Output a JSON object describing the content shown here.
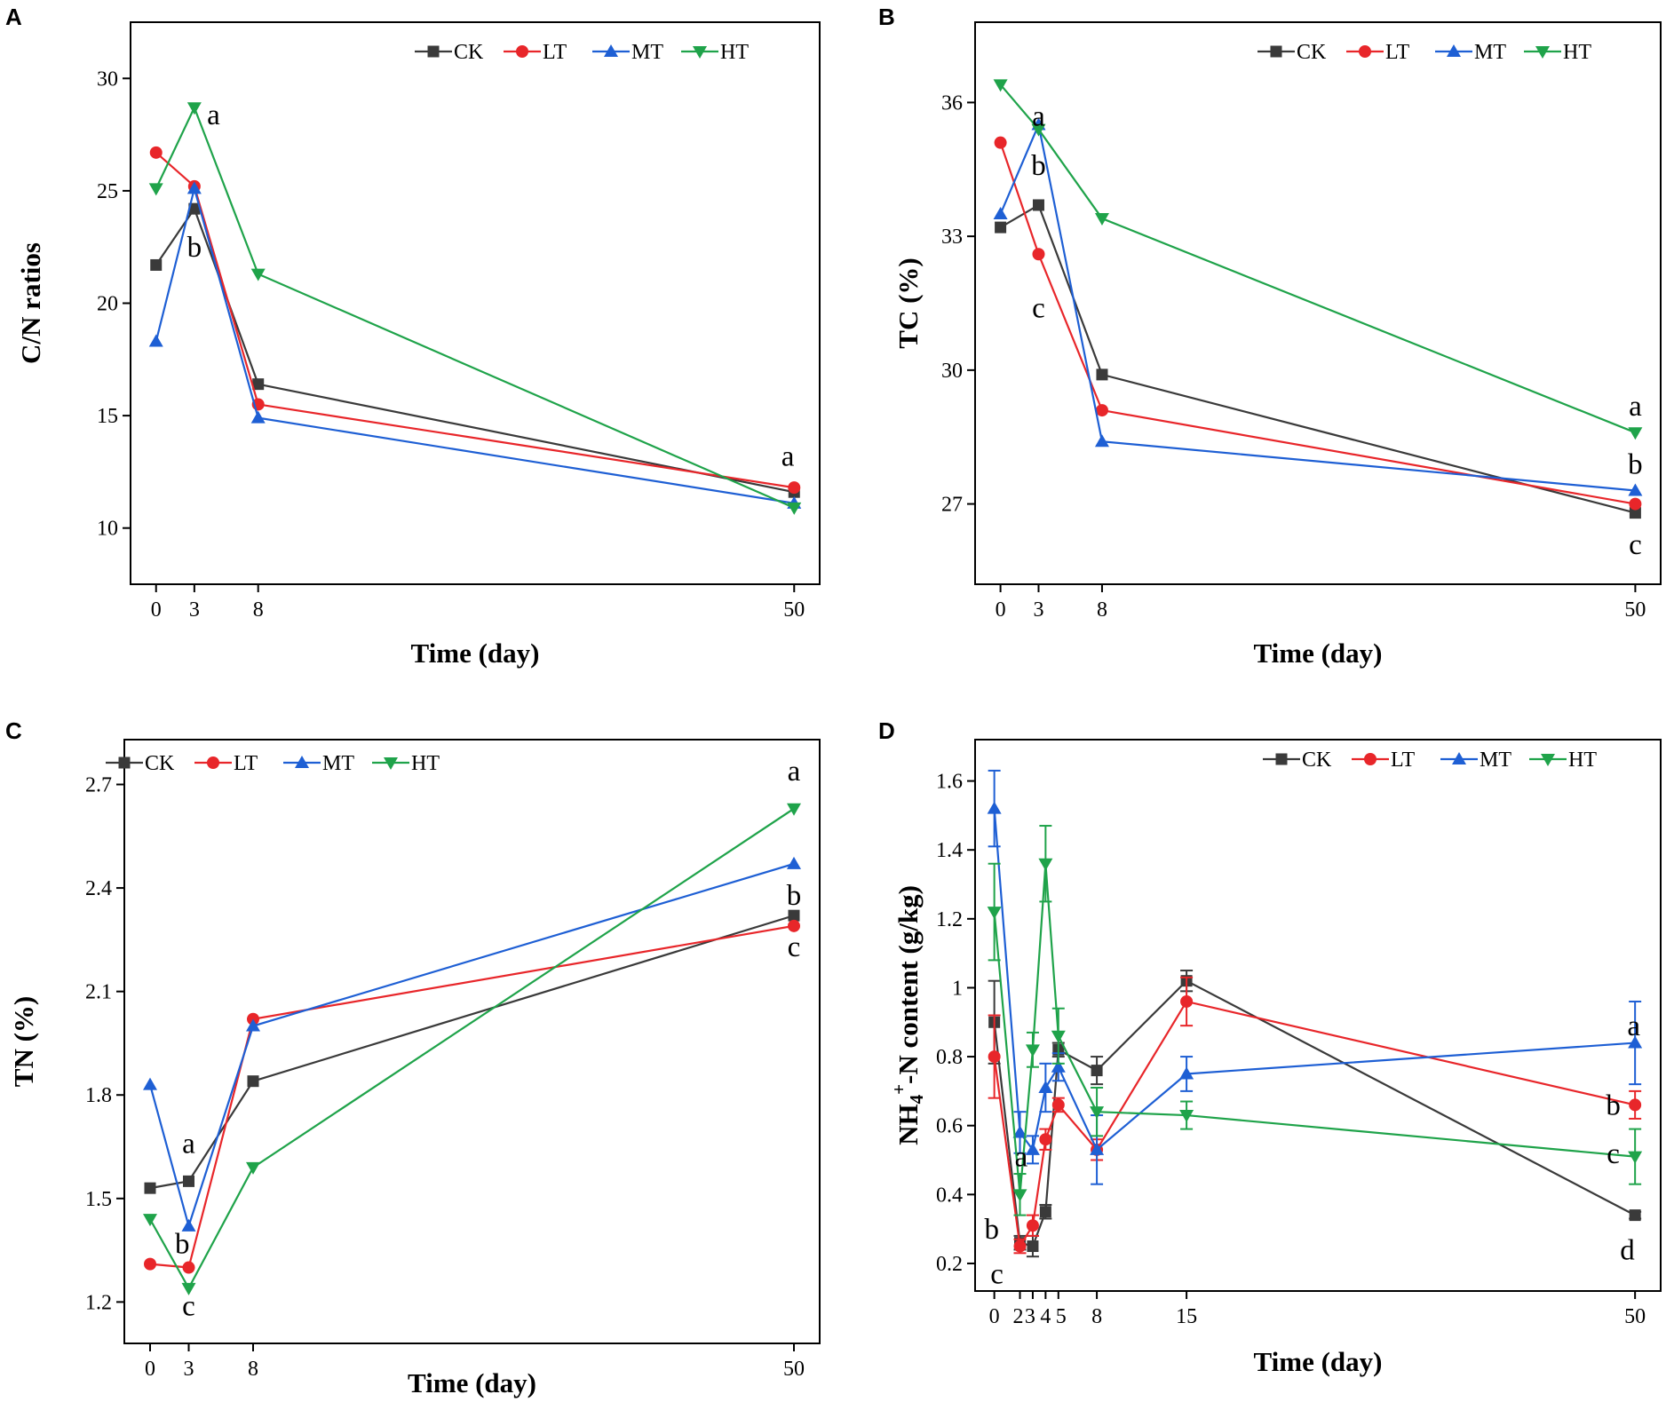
{
  "figure": {
    "colors": {
      "CK": "#3a3a3a",
      "LT": "#e8262a",
      "MT": "#1e5fd4",
      "HT": "#1fa34a"
    }
  },
  "chart_data": [
    {
      "panel": "A",
      "type": "line",
      "xlabel": "Time (day)",
      "ylabel": "C/N ratios",
      "x": [
        0,
        3,
        8,
        50
      ],
      "xticks": [
        0,
        3,
        8,
        50
      ],
      "xlim": [
        -2,
        52
      ],
      "yticks": [
        10,
        15,
        20,
        25,
        30
      ],
      "ylim": [
        7.5,
        32.5
      ],
      "legend": [
        "CK",
        "LT",
        "MT",
        "HT"
      ],
      "legend_position": "top-right",
      "series": [
        {
          "name": "CK",
          "marker": "square",
          "values": [
            21.7,
            24.2,
            16.4,
            11.6
          ]
        },
        {
          "name": "LT",
          "marker": "circle",
          "values": [
            26.7,
            25.2,
            15.5,
            11.8
          ]
        },
        {
          "name": "MT",
          "marker": "triangle-up",
          "values": [
            18.3,
            25.1,
            14.9,
            11.1
          ]
        },
        {
          "name": "HT",
          "marker": "triangle-down",
          "values": [
            25.1,
            28.7,
            21.3,
            10.9
          ]
        }
      ],
      "annotations": [
        {
          "text": "a",
          "x": 4.5,
          "y": 28.4
        },
        {
          "text": "b",
          "x": 3.0,
          "y": 22.5
        },
        {
          "text": "a",
          "x": 49.5,
          "y": 13.2
        }
      ]
    },
    {
      "panel": "B",
      "type": "line",
      "xlabel": "Time (day)",
      "ylabel": "TC (%)",
      "x": [
        0,
        3,
        8,
        50
      ],
      "xticks": [
        0,
        3,
        8,
        50
      ],
      "xlim": [
        -2,
        52
      ],
      "yticks": [
        27,
        30,
        33,
        36
      ],
      "ylim": [
        25.2,
        37.8
      ],
      "legend": [
        "CK",
        "LT",
        "MT",
        "HT"
      ],
      "legend_position": "top-right",
      "series": [
        {
          "name": "CK",
          "marker": "square",
          "values": [
            33.2,
            33.7,
            29.9,
            26.8
          ]
        },
        {
          "name": "LT",
          "marker": "circle",
          "values": [
            35.1,
            32.6,
            29.1,
            27.0
          ]
        },
        {
          "name": "MT",
          "marker": "triangle-up",
          "values": [
            33.5,
            35.5,
            28.4,
            27.3
          ]
        },
        {
          "name": "HT",
          "marker": "triangle-down",
          "values": [
            36.4,
            35.4,
            33.4,
            28.6
          ]
        }
      ],
      "annotations": [
        {
          "text": "a",
          "x": 3.0,
          "y": 35.7
        },
        {
          "text": "b",
          "x": 3.0,
          "y": 34.6
        },
        {
          "text": "c",
          "x": 3.0,
          "y": 31.4
        },
        {
          "text": "a",
          "x": 50.0,
          "y": 29.2
        },
        {
          "text": "b",
          "x": 50.0,
          "y": 27.9
        },
        {
          "text": "c",
          "x": 50.0,
          "y": 26.1
        }
      ]
    },
    {
      "panel": "C",
      "type": "line",
      "xlabel": "Time (day)",
      "ylabel": "TN (%)",
      "x": [
        0,
        3,
        8,
        50
      ],
      "xticks": [
        0,
        3,
        8,
        50
      ],
      "xlim": [
        -2,
        52
      ],
      "yticks": [
        1.2,
        1.5,
        1.8,
        2.1,
        2.4,
        2.7
      ],
      "ylim": [
        1.08,
        2.83
      ],
      "legend": [
        "CK",
        "LT",
        "MT",
        "HT"
      ],
      "legend_position": "top-left",
      "series": [
        {
          "name": "CK",
          "marker": "square",
          "values": [
            1.53,
            1.55,
            1.84,
            2.32
          ]
        },
        {
          "name": "LT",
          "marker": "circle",
          "values": [
            1.31,
            1.3,
            2.02,
            2.29
          ]
        },
        {
          "name": "MT",
          "marker": "triangle-up",
          "values": [
            1.83,
            1.42,
            2.0,
            2.47
          ]
        },
        {
          "name": "HT",
          "marker": "triangle-down",
          "values": [
            1.44,
            1.24,
            1.59,
            2.63
          ]
        }
      ],
      "annotations": [
        {
          "text": "a",
          "x": 3.0,
          "y": 1.66
        },
        {
          "text": "b",
          "x": 2.5,
          "y": 1.37
        },
        {
          "text": "c",
          "x": 3.0,
          "y": 1.19
        },
        {
          "text": "a",
          "x": 50.0,
          "y": 2.74
        },
        {
          "text": "b",
          "x": 50.0,
          "y": 2.38
        },
        {
          "text": "c",
          "x": 50.0,
          "y": 2.23
        }
      ]
    },
    {
      "panel": "D",
      "type": "line",
      "xlabel": "Time (day)",
      "ylabel": "NH4+-N content (g/kg)",
      "ylabel_parts": {
        "pre": "NH",
        "sub": "4",
        "sup": "+",
        "post": "-N content (g/kg)"
      },
      "x": [
        0,
        2,
        3,
        4,
        5,
        8,
        15,
        50
      ],
      "xticks": [
        0,
        2,
        3,
        4,
        5,
        8,
        15,
        50
      ],
      "xtick_labels": [
        "0",
        "2",
        "3",
        "4",
        "5",
        "8",
        "15",
        "50"
      ],
      "xlim": [
        -1.5,
        52
      ],
      "yticks": [
        0.2,
        0.4,
        0.6,
        0.8,
        1.0,
        1.2,
        1.4,
        1.6
      ],
      "ylim": [
        0.12,
        1.72
      ],
      "legend": [
        "CK",
        "LT",
        "MT",
        "HT"
      ],
      "legend_position": "top-right",
      "series": [
        {
          "name": "CK",
          "marker": "square",
          "values": [
            0.9,
            0.26,
            0.25,
            0.35,
            0.82,
            0.76,
            1.02,
            0.34
          ],
          "errors": [
            0.12,
            0.02,
            0.03,
            0.02,
            0.02,
            0.04,
            0.03,
            0.01
          ]
        },
        {
          "name": "LT",
          "marker": "circle",
          "values": [
            0.8,
            0.25,
            0.31,
            0.56,
            0.66,
            0.53,
            0.96,
            0.66
          ],
          "errors": [
            0.12,
            0.02,
            0.03,
            0.03,
            0.02,
            0.03,
            0.07,
            0.04
          ]
        },
        {
          "name": "MT",
          "marker": "triangle-up",
          "values": [
            1.52,
            0.58,
            0.53,
            0.71,
            0.77,
            0.53,
            0.75,
            0.84
          ],
          "errors": [
            0.11,
            0.06,
            0.04,
            0.07,
            0.04,
            0.1,
            0.05,
            0.12
          ]
        },
        {
          "name": "HT",
          "marker": "triangle-down",
          "values": [
            1.22,
            0.4,
            0.82,
            1.36,
            0.86,
            0.64,
            0.63,
            0.51
          ],
          "errors": [
            0.14,
            0.06,
            0.05,
            0.11,
            0.08,
            0.07,
            0.04,
            0.08
          ]
        }
      ],
      "annotations": [
        {
          "text": "a",
          "x": 2.1,
          "y": 0.51
        },
        {
          "text": "b",
          "x": -0.2,
          "y": 0.3
        },
        {
          "text": "c",
          "x": 0.2,
          "y": 0.17
        },
        {
          "text": "a",
          "x": 49.9,
          "y": 0.89
        },
        {
          "text": "b",
          "x": 48.3,
          "y": 0.66
        },
        {
          "text": "c",
          "x": 48.3,
          "y": 0.52
        },
        {
          "text": "d",
          "x": 49.4,
          "y": 0.24
        }
      ]
    }
  ]
}
